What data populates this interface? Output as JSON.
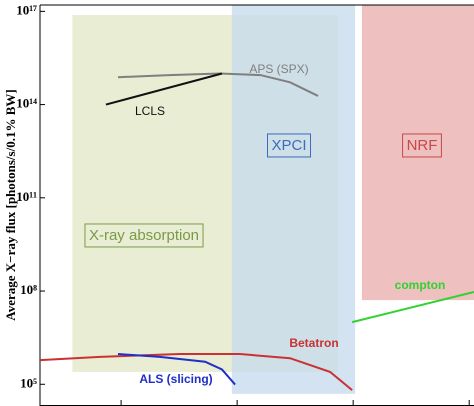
{
  "chart_data": {
    "type": "line",
    "ylabel": "Average X−ray flux [photons/s/0.1% BW]",
    "xscale": "log",
    "yscale": "log",
    "xlim": [
      2,
      11000
    ],
    "xticks": [
      10,
      100,
      1000,
      10000
    ],
    "ylim": [
      20000,
      1.6e+17
    ],
    "yticks": [
      {
        "value": 100000,
        "label": "10⁵"
      },
      {
        "value": 100000000,
        "label": "10⁸"
      },
      {
        "value": 100000000000,
        "label": "10¹¹"
      },
      {
        "value": 100000000000000,
        "label": "10¹⁴"
      },
      {
        "value": 1e+17,
        "label": "10¹⁷"
      }
    ],
    "regions": [
      {
        "name": "X-ray absorption",
        "color": "#e6ebcf",
        "text_color": "#7a9a48",
        "xrange": [
          3.8,
          740
        ],
        "yrange": [
          250000,
          7.6e+16
        ]
      },
      {
        "name": "XPCI",
        "color": "#c5d9ee",
        "text_color": "#3a6cc0",
        "xrange": [
          90,
          1040
        ],
        "yrange": [
          49000,
          1.6e+17
        ]
      },
      {
        "name": "NRF",
        "color": "#ecb9b9",
        "text_color": "#c84848",
        "xrange": [
          1190,
          11000
        ],
        "yrange": [
          51000000,
          1.6e+17
        ]
      }
    ],
    "series": [
      {
        "name": "APS (SPX)",
        "color": "#7f7f7f",
        "x": [
          9.4,
          26,
          71,
          159,
          286,
          498
        ],
        "values": [
          760000000000000,
          890000000000000,
          1000000000000000,
          890000000000000,
          520000000000000,
          190000000000000
        ]
      },
      {
        "name": "LCLS",
        "color": "#111111",
        "x": [
          7.4,
          74
        ],
        "values": [
          100000000000000,
          1000000000000000
        ]
      },
      {
        "name": "Betatron",
        "color": "#c83232",
        "x": [
          2,
          6.6,
          32,
          106,
          286,
          632,
          980
        ],
        "values": [
          600000,
          760000,
          940000,
          940000,
          690000,
          250000,
          65000
        ]
      },
      {
        "name": "ALS (slicing)",
        "color": "#1f2fc8",
        "x": [
          9.4,
          21.6,
          53,
          74,
          96
        ],
        "values": [
          940000,
          760000,
          530000,
          300000,
          98000
        ]
      },
      {
        "name": "compton",
        "color": "#2fd22f",
        "x": [
          980,
          11000
        ],
        "values": [
          10000000,
          93000000
        ]
      }
    ]
  }
}
